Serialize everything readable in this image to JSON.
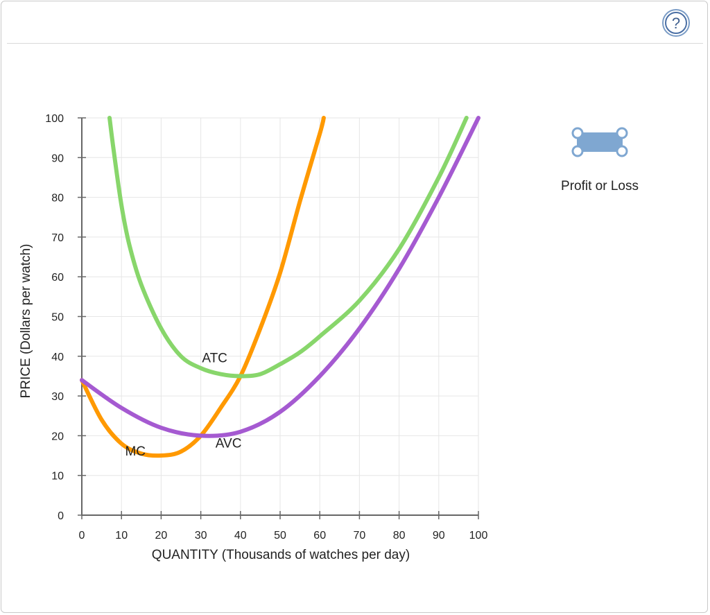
{
  "help_icon": "question-circle-icon",
  "tool": {
    "label": "Profit or Loss",
    "icon": "rectangle-area-icon",
    "color": "#7fa7d1"
  },
  "chart_data": {
    "type": "line",
    "title": "",
    "xlabel": "QUANTITY (Thousands of watches per day)",
    "ylabel": "PRICE (Dollars per watch)",
    "xlim": [
      0,
      100
    ],
    "ylim": [
      0,
      100
    ],
    "x_ticks": [
      0,
      10,
      20,
      30,
      40,
      50,
      60,
      70,
      80,
      90,
      100
    ],
    "y_ticks": [
      0,
      10,
      20,
      30,
      40,
      50,
      60,
      70,
      80,
      90,
      100
    ],
    "grid": true,
    "series": [
      {
        "name": "MC",
        "color": "#ff9900",
        "x": [
          0,
          5,
          10,
          15,
          20,
          25,
          30,
          35,
          40,
          45,
          50,
          55,
          60,
          61
        ],
        "y": [
          34,
          24,
          18,
          15.5,
          15,
          16,
          20,
          27,
          35,
          47,
          61,
          79,
          96,
          100
        ]
      },
      {
        "name": "ATC",
        "color": "#88d66b",
        "x": [
          7,
          8,
          10,
          12,
          15,
          20,
          25,
          30,
          35,
          40,
          45,
          50,
          55,
          60,
          70,
          80,
          90,
          97
        ],
        "y": [
          100,
          92,
          78,
          68,
          58,
          47,
          40,
          37,
          35.5,
          35,
          35.5,
          38,
          41,
          45,
          54,
          67,
          85,
          100
        ]
      },
      {
        "name": "AVC",
        "color": "#a55ad1",
        "x": [
          0,
          10,
          20,
          30,
          40,
          50,
          60,
          70,
          80,
          90,
          100
        ],
        "y": [
          34,
          27,
          22,
          20,
          21,
          26,
          35,
          47,
          62,
          80,
          100
        ]
      }
    ],
    "annotations": [
      {
        "text": "MC",
        "x": 13.5,
        "y": 15
      },
      {
        "text": "ATC",
        "x": 33.5,
        "y": 38.5
      },
      {
        "text": "AVC",
        "x": 37,
        "y": 17
      }
    ]
  }
}
